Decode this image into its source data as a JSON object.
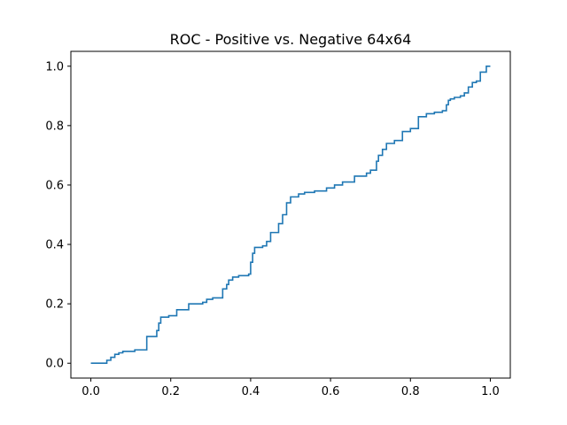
{
  "chart_data": {
    "type": "line",
    "title": "ROC - Positive vs. Negative 64x64",
    "xlabel": "",
    "ylabel": "",
    "xlim": [
      -0.05,
      1.05
    ],
    "ylim": [
      -0.05,
      1.05
    ],
    "x_ticks": [
      0.0,
      0.2,
      0.4,
      0.6,
      0.8,
      1.0
    ],
    "x_tick_labels": [
      "0.0",
      "0.2",
      "0.4",
      "0.6",
      "0.8",
      "1.0"
    ],
    "y_ticks": [
      0.0,
      0.2,
      0.4,
      0.6,
      0.8,
      1.0
    ],
    "y_tick_labels": [
      "0.0",
      "0.2",
      "0.4",
      "0.6",
      "0.8",
      "1.0"
    ],
    "grid": false,
    "series": [
      {
        "color": "#1f77b4",
        "step": true,
        "x": [
          0.0,
          0.04,
          0.05,
          0.06,
          0.07,
          0.08,
          0.11,
          0.14,
          0.165,
          0.17,
          0.175,
          0.195,
          0.215,
          0.245,
          0.28,
          0.29,
          0.305,
          0.33,
          0.34,
          0.345,
          0.355,
          0.37,
          0.395,
          0.4,
          0.405,
          0.41,
          0.43,
          0.44,
          0.45,
          0.47,
          0.48,
          0.49,
          0.5,
          0.52,
          0.535,
          0.56,
          0.59,
          0.61,
          0.63,
          0.66,
          0.69,
          0.7,
          0.715,
          0.72,
          0.73,
          0.74,
          0.76,
          0.78,
          0.8,
          0.82,
          0.84,
          0.86,
          0.88,
          0.89,
          0.895,
          0.9,
          0.91,
          0.925,
          0.935,
          0.945,
          0.955,
          0.965,
          0.975,
          0.99,
          1.0
        ],
        "y": [
          0.0,
          0.01,
          0.02,
          0.03,
          0.035,
          0.04,
          0.045,
          0.09,
          0.11,
          0.135,
          0.155,
          0.16,
          0.18,
          0.2,
          0.205,
          0.215,
          0.22,
          0.25,
          0.265,
          0.28,
          0.29,
          0.295,
          0.3,
          0.34,
          0.37,
          0.39,
          0.395,
          0.41,
          0.44,
          0.47,
          0.5,
          0.54,
          0.56,
          0.57,
          0.575,
          0.58,
          0.59,
          0.6,
          0.61,
          0.63,
          0.64,
          0.65,
          0.68,
          0.7,
          0.72,
          0.74,
          0.75,
          0.78,
          0.79,
          0.83,
          0.84,
          0.845,
          0.85,
          0.87,
          0.885,
          0.89,
          0.895,
          0.9,
          0.91,
          0.93,
          0.945,
          0.95,
          0.98,
          1.0,
          1.0
        ]
      }
    ]
  }
}
